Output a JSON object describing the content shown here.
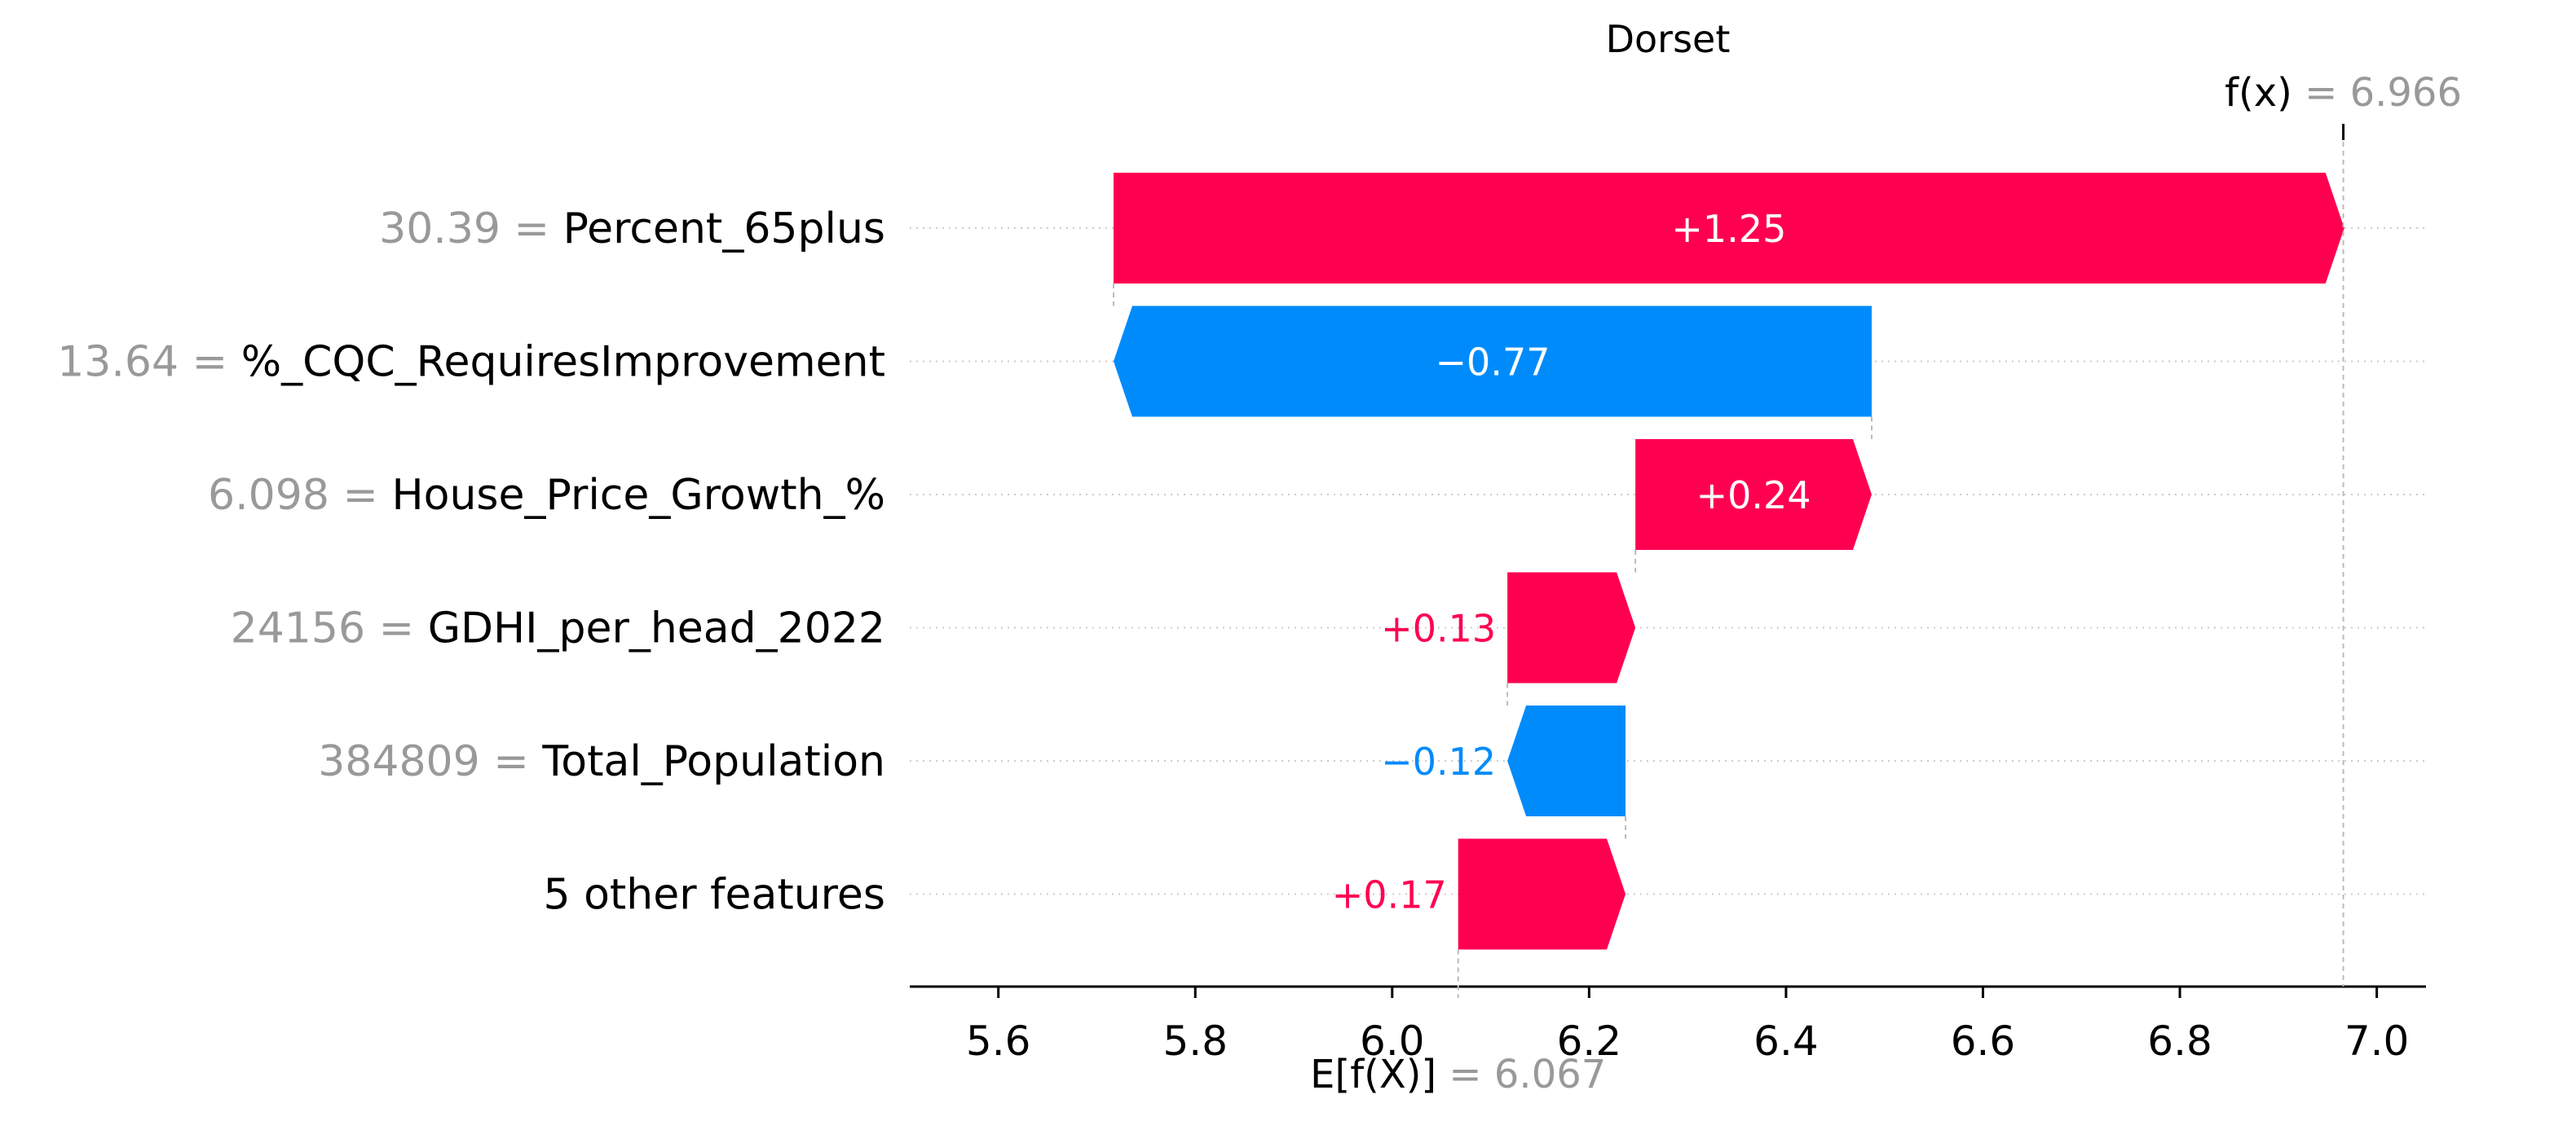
{
  "chart_data": {
    "type": "waterfall",
    "title": "Dorset",
    "base_value": 6.067,
    "base_label": "E[f(X)]",
    "output_value": 6.966,
    "output_label": "f(x)",
    "xlim": [
      5.51,
      7.05
    ],
    "x_ticks": [
      5.6,
      5.8,
      6.0,
      6.2,
      6.4,
      6.6,
      6.8,
      7.0
    ],
    "x_tick_labels": [
      "5.6",
      "5.8",
      "6.0",
      "6.2",
      "6.4",
      "6.6",
      "6.8",
      "7.0"
    ],
    "features": [
      {
        "value": "30.39",
        "name": "Percent_65plus",
        "contribution": 1.25,
        "label": "+1.25"
      },
      {
        "value": "13.64",
        "name": "%_CQC_RequiresImprovement",
        "contribution": -0.77,
        "label": "−0.77"
      },
      {
        "value": "6.098",
        "name": "House_Price_Growth_%",
        "contribution": 0.24,
        "label": "+0.24"
      },
      {
        "value": "24156",
        "name": "GDHI_per_head_2022",
        "contribution": 0.13,
        "label": "+0.13"
      },
      {
        "value": "384809",
        "name": "Total_Population",
        "contribution": -0.12,
        "label": "−0.12"
      },
      {
        "value": "",
        "name": "5 other features",
        "contribution": 0.17,
        "label": "+0.17"
      }
    ],
    "colors": {
      "positive": "#ff0051",
      "negative": "#008bfb",
      "muted": "#999999"
    }
  }
}
